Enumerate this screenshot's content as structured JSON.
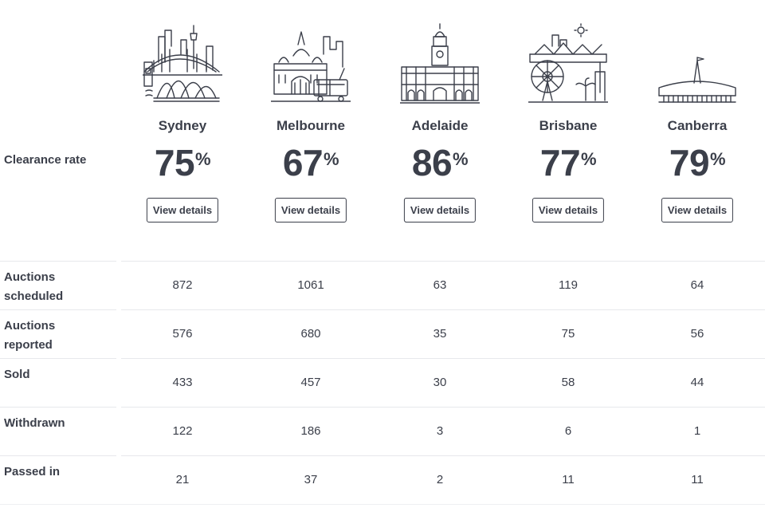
{
  "clearance_label": "Clearance rate",
  "view_details_label": "View details",
  "cities": [
    {
      "name": "Sydney",
      "rate": "75",
      "icon": "sydney-skyline-icon"
    },
    {
      "name": "Melbourne",
      "rate": "67",
      "icon": "melbourne-skyline-icon"
    },
    {
      "name": "Adelaide",
      "rate": "86",
      "icon": "adelaide-skyline-icon"
    },
    {
      "name": "Brisbane",
      "rate": "77",
      "icon": "brisbane-skyline-icon"
    },
    {
      "name": "Canberra",
      "rate": "79",
      "icon": "canberra-skyline-icon"
    }
  ],
  "percent_sign": "%",
  "rows": [
    {
      "label": "Auctions scheduled",
      "values": [
        "872",
        "1061",
        "63",
        "119",
        "64"
      ]
    },
    {
      "label": "Auctions reported",
      "values": [
        "576",
        "680",
        "35",
        "75",
        "56"
      ]
    },
    {
      "label": "Sold",
      "values": [
        "433",
        "457",
        "30",
        "58",
        "44"
      ]
    },
    {
      "label": "Withdrawn",
      "values": [
        "122",
        "186",
        "3",
        "6",
        "1"
      ]
    },
    {
      "label": "Passed in",
      "values": [
        "21",
        "37",
        "2",
        "11",
        "11"
      ]
    }
  ],
  "colors": {
    "text": "#3b3f4a",
    "divider": "#e7e8ec"
  }
}
